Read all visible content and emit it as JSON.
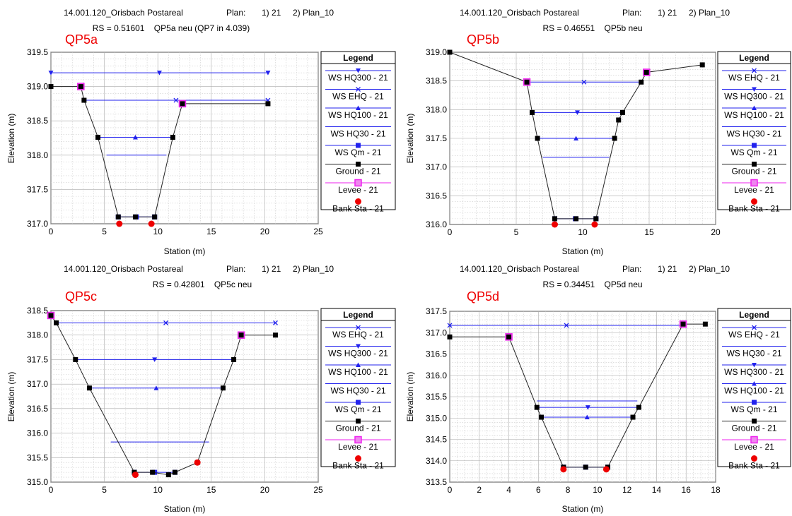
{
  "colors": {
    "ws": "#2222ee",
    "ground": "#000000",
    "levee": "#ee22ee",
    "bank": "#ee0000",
    "title_accent": "#ee0000",
    "grid": "#bbbbbb"
  },
  "chart_data": [
    {
      "type": "line",
      "project": "14.001.120_Orisbach Postareal",
      "plan_label": "Plan:",
      "plan1": "1) 21",
      "plan2": "2) Plan_10",
      "rs_line": "RS = 0.51601    QP5a neu (QP7 in 4.039)",
      "section_title": "QP5a",
      "xlabel": "Station (m)",
      "ylabel": "Elevation (m)",
      "xlim": [
        0,
        25
      ],
      "ylim": [
        317.0,
        319.5
      ],
      "xticks": [
        "0",
        "5",
        "10",
        "15",
        "20",
        "25"
      ],
      "yticks": [
        "317.0",
        "317.5",
        "318.0",
        "318.5",
        "319.0",
        "319.5"
      ],
      "legend_title": "Legend",
      "legend": [
        {
          "label": "WS HQ300 - 21",
          "marker": "tri-down",
          "color": "#2222ee"
        },
        {
          "label": "WS EHQ - 21",
          "marker": "x",
          "color": "#2222ee"
        },
        {
          "label": "WS HQ100 - 21",
          "marker": "tri-up",
          "color": "#2222ee"
        },
        {
          "label": "WS HQ30 - 21",
          "marker": "none",
          "color": "#2222ee"
        },
        {
          "label": "WS Qm - 21",
          "marker": "square",
          "color": "#2222ee"
        },
        {
          "label": "Ground - 21",
          "marker": "square",
          "color": "#000000"
        },
        {
          "label": "Levee - 21",
          "marker": "open-square",
          "color": "#ee22ee"
        },
        {
          "label": "Bank Sta - 21",
          "marker": "circle",
          "color": "#ee0000"
        }
      ],
      "ground": [
        [
          0,
          319.0
        ],
        [
          2.8,
          319.0
        ],
        [
          3.1,
          318.8
        ],
        [
          4.4,
          318.26
        ],
        [
          6.3,
          317.1
        ],
        [
          7.9,
          317.1
        ],
        [
          9.7,
          317.1
        ],
        [
          11.4,
          318.26
        ],
        [
          12.3,
          318.75
        ],
        [
          20.3,
          318.75
        ]
      ],
      "water_surfaces": [
        {
          "name": "WS HQ300 - 21",
          "marker": "tri-down",
          "x": [
            0,
            20.3
          ],
          "y": 319.2
        },
        {
          "name": "WS EHQ - 21",
          "marker": "x",
          "x": [
            3.1,
            20.3
          ],
          "y": 318.8
        },
        {
          "name": "WS HQ100 - 21",
          "marker": "tri-up",
          "x": [
            4.4,
            11.4
          ],
          "y": 318.26
        },
        {
          "name": "WS HQ30 - 21",
          "marker": "none",
          "x": [
            5.2,
            10.8
          ],
          "y": 318.0
        },
        {
          "name": "WS Qm - 21",
          "marker": "square",
          "x": [
            6.3,
            9.7
          ],
          "y": 317.1
        }
      ],
      "levee": [
        [
          2.8,
          319.0
        ],
        [
          12.3,
          318.75
        ]
      ],
      "bank": [
        [
          6.4,
          317.0
        ],
        [
          9.4,
          317.0
        ]
      ]
    },
    {
      "type": "line",
      "project": "14.001.120_Orisbach Postareal",
      "plan_label": "Plan:",
      "plan1": "1) 21",
      "plan2": "2) Plan_10",
      "rs_line": "RS = 0.46551    QP5b neu",
      "section_title": "QP5b",
      "xlabel": "Station (m)",
      "ylabel": "Elevation (m)",
      "xlim": [
        0,
        20
      ],
      "ylim": [
        316.0,
        319.0
      ],
      "xticks": [
        "0",
        "5",
        "10",
        "15",
        "20"
      ],
      "yticks": [
        "316.0",
        "316.5",
        "317.0",
        "317.5",
        "318.0",
        "318.5",
        "319.0"
      ],
      "legend_title": "Legend",
      "legend": [
        {
          "label": "WS EHQ - 21",
          "marker": "x",
          "color": "#2222ee"
        },
        {
          "label": "WS HQ300 - 21",
          "marker": "tri-down",
          "color": "#2222ee"
        },
        {
          "label": "WS HQ100 - 21",
          "marker": "tri-up",
          "color": "#2222ee"
        },
        {
          "label": "WS HQ30 - 21",
          "marker": "none",
          "color": "#2222ee"
        },
        {
          "label": "WS Qm - 21",
          "marker": "square",
          "color": "#2222ee"
        },
        {
          "label": "Ground - 21",
          "marker": "square",
          "color": "#000000"
        },
        {
          "label": "Levee - 21",
          "marker": "open-square",
          "color": "#ee22ee"
        },
        {
          "label": "Bank Sta - 21",
          "marker": "circle",
          "color": "#ee0000"
        }
      ],
      "ground": [
        [
          0,
          319.0
        ],
        [
          5.8,
          318.48
        ],
        [
          6.2,
          317.95
        ],
        [
          6.6,
          317.5
        ],
        [
          7.9,
          316.1
        ],
        [
          9.5,
          316.1
        ],
        [
          11.0,
          316.1
        ],
        [
          12.4,
          317.5
        ],
        [
          12.7,
          317.82
        ],
        [
          13.0,
          317.95
        ],
        [
          14.4,
          318.48
        ],
        [
          14.8,
          318.65
        ],
        [
          19.0,
          318.78
        ]
      ],
      "water_surfaces": [
        {
          "name": "WS EHQ - 21",
          "marker": "x",
          "x": [
            5.8,
            14.4
          ],
          "y": 318.48
        },
        {
          "name": "WS HQ300 - 21",
          "marker": "tri-down",
          "x": [
            6.2,
            13.0
          ],
          "y": 317.95
        },
        {
          "name": "WS HQ100 - 21",
          "marker": "tri-up",
          "x": [
            6.6,
            12.4
          ],
          "y": 317.5
        },
        {
          "name": "WS HQ30 - 21",
          "marker": "none",
          "x": [
            7.0,
            12.0
          ],
          "y": 317.17
        },
        {
          "name": "WS Qm - 21",
          "marker": "square",
          "x": [
            7.9,
            11.0
          ],
          "y": 316.1
        }
      ],
      "levee": [
        [
          5.8,
          318.48
        ],
        [
          14.8,
          318.65
        ]
      ],
      "bank": [
        [
          7.9,
          316.0
        ],
        [
          10.9,
          316.0
        ]
      ]
    },
    {
      "type": "line",
      "project": "14.001.120_Orisbach Postareal",
      "plan_label": "Plan:",
      "plan1": "1) 21",
      "plan2": "2) Plan_10",
      "rs_line": "RS = 0.42801    QP5c neu",
      "section_title": "QP5c",
      "xlabel": "Station (m)",
      "ylabel": "Elevation (m)",
      "xlim": [
        0,
        25
      ],
      "ylim": [
        315.0,
        318.5
      ],
      "xticks": [
        "0",
        "5",
        "10",
        "15",
        "20",
        "25"
      ],
      "yticks": [
        "315.0",
        "315.5",
        "316.0",
        "316.5",
        "317.0",
        "317.5",
        "318.0",
        "318.5"
      ],
      "legend_title": "Legend",
      "legend": [
        {
          "label": "WS EHQ - 21",
          "marker": "x",
          "color": "#2222ee"
        },
        {
          "label": "WS HQ300 - 21",
          "marker": "tri-down",
          "color": "#2222ee"
        },
        {
          "label": "WS HQ100 - 21",
          "marker": "tri-up",
          "color": "#2222ee"
        },
        {
          "label": "WS HQ30 - 21",
          "marker": "none",
          "color": "#2222ee"
        },
        {
          "label": "WS Qm - 21",
          "marker": "square",
          "color": "#2222ee"
        },
        {
          "label": "Ground - 21",
          "marker": "square",
          "color": "#000000"
        },
        {
          "label": "Levee - 21",
          "marker": "open-square",
          "color": "#ee22ee"
        },
        {
          "label": "Bank Sta - 21",
          "marker": "circle",
          "color": "#ee0000"
        }
      ],
      "ground": [
        [
          0,
          318.4
        ],
        [
          0.5,
          318.25
        ],
        [
          2.3,
          317.5
        ],
        [
          3.6,
          316.92
        ],
        [
          7.8,
          315.2
        ],
        [
          9.5,
          315.2
        ],
        [
          11.0,
          315.15
        ],
        [
          11.6,
          315.2
        ],
        [
          13.7,
          315.4
        ],
        [
          16.1,
          316.92
        ],
        [
          17.1,
          317.5
        ],
        [
          17.8,
          318.0
        ],
        [
          21.0,
          318.0
        ]
      ],
      "water_surfaces": [
        {
          "name": "WS EHQ - 21",
          "marker": "x",
          "x": [
            0.5,
            21.0
          ],
          "y": 318.25
        },
        {
          "name": "WS HQ300 - 21",
          "marker": "tri-down",
          "x": [
            2.3,
            17.1
          ],
          "y": 317.5
        },
        {
          "name": "WS HQ100 - 21",
          "marker": "tri-up",
          "x": [
            3.6,
            16.1
          ],
          "y": 316.92
        },
        {
          "name": "WS HQ30 - 21",
          "marker": "none",
          "x": [
            5.6,
            14.8
          ],
          "y": 315.82
        },
        {
          "name": "WS Qm - 21",
          "marker": "square",
          "x": [
            7.8,
            11.6
          ],
          "y": 315.2
        }
      ],
      "levee": [
        [
          0,
          318.4
        ],
        [
          17.8,
          318.0
        ]
      ],
      "bank": [
        [
          7.9,
          315.15
        ],
        [
          13.7,
          315.4
        ]
      ]
    },
    {
      "type": "line",
      "project": "14.001.120_Orisbach Postareal",
      "plan_label": "Plan:",
      "plan1": "1) 21",
      "plan2": "2) Plan_10",
      "rs_line": "RS = 0.34451    QP5d neu",
      "section_title": "QP5d",
      "xlabel": "Station (m)",
      "ylabel": "Elevation (m)",
      "xlim": [
        0,
        18
      ],
      "ylim": [
        313.5,
        317.5
      ],
      "xticks": [
        "0",
        "2",
        "4",
        "6",
        "8",
        "10",
        "12",
        "14",
        "16",
        "18"
      ],
      "yticks": [
        "313.5",
        "314.0",
        "314.5",
        "315.0",
        "315.5",
        "316.0",
        "316.5",
        "317.0",
        "317.5"
      ],
      "legend_title": "Legend",
      "legend": [
        {
          "label": "WS EHQ - 21",
          "marker": "x",
          "color": "#2222ee"
        },
        {
          "label": "WS HQ30 - 21",
          "marker": "none",
          "color": "#2222ee"
        },
        {
          "label": "WS HQ300 - 21",
          "marker": "tri-down",
          "color": "#2222ee"
        },
        {
          "label": "WS HQ100 - 21",
          "marker": "tri-up",
          "color": "#2222ee"
        },
        {
          "label": "WS Qm - 21",
          "marker": "square",
          "color": "#2222ee"
        },
        {
          "label": "Ground - 21",
          "marker": "square",
          "color": "#000000"
        },
        {
          "label": "Levee - 21",
          "marker": "open-square",
          "color": "#ee22ee"
        },
        {
          "label": "Bank Sta - 21",
          "marker": "circle",
          "color": "#ee0000"
        }
      ],
      "ground": [
        [
          0,
          316.9
        ],
        [
          4.0,
          316.9
        ],
        [
          5.9,
          315.25
        ],
        [
          6.2,
          315.02
        ],
        [
          7.7,
          313.85
        ],
        [
          9.2,
          313.85
        ],
        [
          10.7,
          313.85
        ],
        [
          12.4,
          315.02
        ],
        [
          12.8,
          315.25
        ],
        [
          15.8,
          317.2
        ],
        [
          17.3,
          317.2
        ]
      ],
      "water_surfaces": [
        {
          "name": "WS EHQ - 21",
          "marker": "x",
          "x": [
            0,
            15.8
          ],
          "y": 317.17
        },
        {
          "name": "WS HQ30 - 21",
          "marker": "none",
          "x": [
            5.9,
            12.7
          ],
          "y": 315.4
        },
        {
          "name": "WS HQ300 - 21",
          "marker": "tri-down",
          "x": [
            5.9,
            12.8
          ],
          "y": 315.25
        },
        {
          "name": "WS HQ100 - 21",
          "marker": "tri-up",
          "x": [
            6.2,
            12.4
          ],
          "y": 315.02
        },
        {
          "name": "WS Qm - 21",
          "marker": "square",
          "x": [
            7.7,
            10.7
          ],
          "y": 313.85
        }
      ],
      "levee": [
        [
          4.0,
          316.9
        ],
        [
          15.8,
          317.2
        ]
      ],
      "bank": [
        [
          7.7,
          313.8
        ],
        [
          10.6,
          313.8
        ]
      ]
    }
  ]
}
